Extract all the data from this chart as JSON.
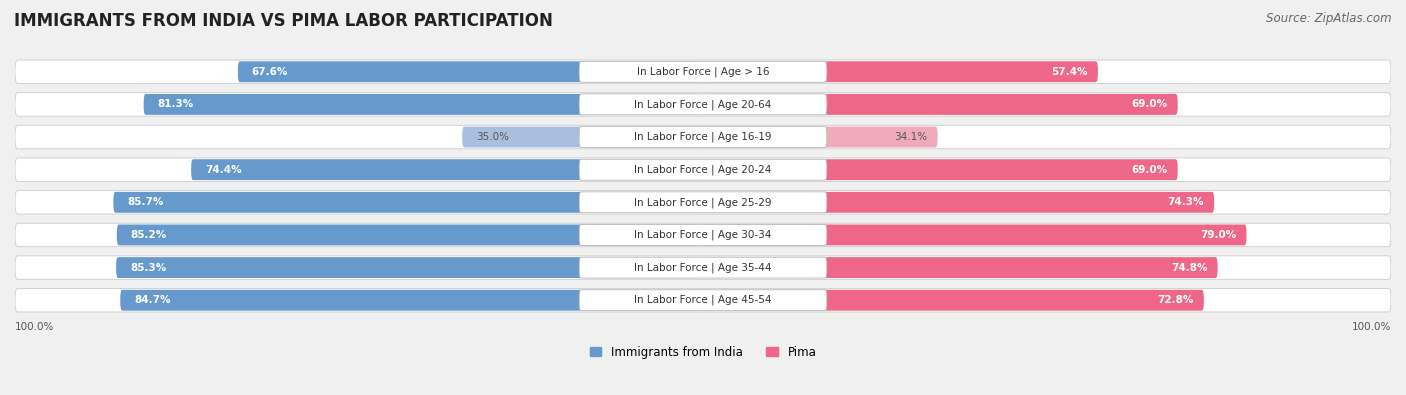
{
  "title": "IMMIGRANTS FROM INDIA VS PIMA LABOR PARTICIPATION",
  "source": "Source: ZipAtlas.com",
  "categories": [
    "In Labor Force | Age > 16",
    "In Labor Force | Age 20-64",
    "In Labor Force | Age 16-19",
    "In Labor Force | Age 20-24",
    "In Labor Force | Age 25-29",
    "In Labor Force | Age 30-34",
    "In Labor Force | Age 35-44",
    "In Labor Force | Age 45-54"
  ],
  "india_values": [
    67.6,
    81.3,
    35.0,
    74.4,
    85.7,
    85.2,
    85.3,
    84.7
  ],
  "pima_values": [
    57.4,
    69.0,
    34.1,
    69.0,
    74.3,
    79.0,
    74.8,
    72.8
  ],
  "india_color": "#6699CC",
  "india_color_light": "#AABFDD",
  "pima_color": "#EE6688",
  "pima_color_light": "#F0AABB",
  "background_color": "#F0F0F0",
  "bar_bg_color": "#E0E0E0",
  "row_bg_color": "#E8E8E8",
  "title_fontsize": 12,
  "source_fontsize": 8.5,
  "label_fontsize": 7.5,
  "value_fontsize": 7.5,
  "legend_fontsize": 8.5,
  "axis_label_fontsize": 7.5,
  "max_value": 100.0
}
